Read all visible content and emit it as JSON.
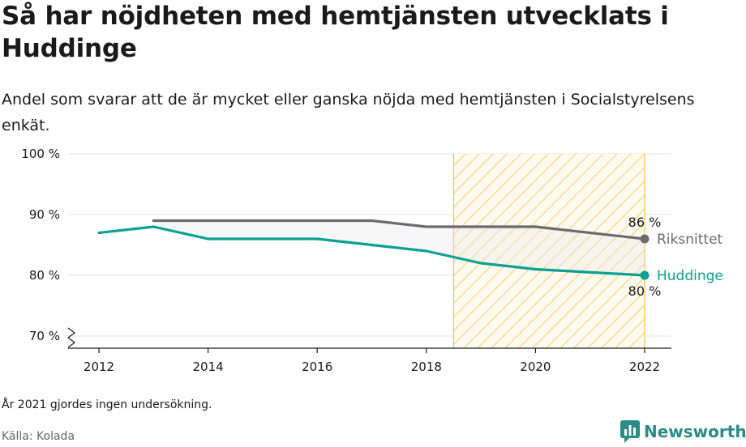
{
  "title": "Så har nöjdheten med hemtjänsten utvecklats i Huddinge",
  "subtitle": "Andel som svarar att de är mycket eller ganska nöjda med hemtjänsten i Socialstyrelsens enkät.",
  "note": "År 2021 gjordes ingen undersökning.",
  "source": "Källa: Kolada",
  "brand": {
    "name": "Newsworthy",
    "icon": "newsworthy-logo-icon",
    "color": "#2a8b87"
  },
  "chart_data": {
    "type": "line",
    "x_ticks": [
      "2012",
      "2014",
      "2016",
      "2018",
      "2020",
      "2022"
    ],
    "y_ticks": [
      "70 %",
      "80 %",
      "90 %",
      "100 %"
    ],
    "xlim": [
      2011.55,
      2022.5
    ],
    "ylim": [
      70,
      100
    ],
    "axis_break": true,
    "grid": true,
    "shaded_region": {
      "from": 2018.5,
      "to": 2022,
      "pattern": "diagonal-hatch",
      "color": "#f5c04a"
    },
    "series": [
      {
        "name": "Riksnittet",
        "color": "#6b6b70",
        "x": [
          2013,
          2014,
          2015,
          2016,
          2017,
          2018,
          2019,
          2020,
          2022
        ],
        "y": [
          89,
          89,
          89,
          89,
          89,
          88,
          88,
          88,
          86
        ],
        "end_label": "86 %"
      },
      {
        "name": "Huddinge",
        "color": "#0ca090",
        "x": [
          2012,
          2013,
          2014,
          2015,
          2016,
          2017,
          2018,
          2019,
          2020,
          2022
        ],
        "y": [
          87,
          88,
          86,
          86,
          86,
          85,
          84,
          82,
          81,
          80
        ],
        "end_label": "80 %"
      }
    ]
  }
}
